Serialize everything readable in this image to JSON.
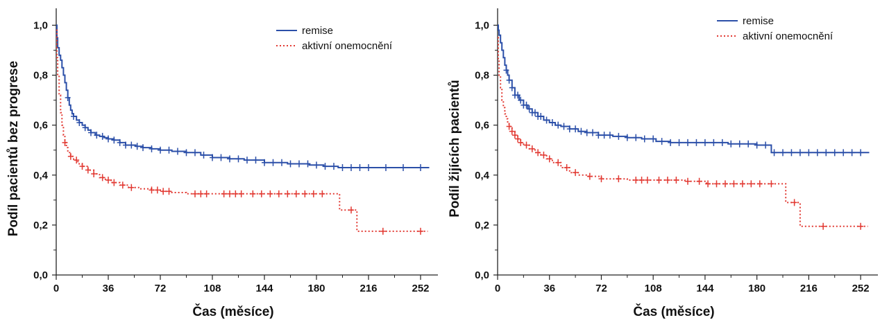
{
  "chart_data": [
    {
      "type": "line",
      "title": "",
      "xlabel": "Čas (měsíce)",
      "ylabel": "Podíl pacientů bez progrese",
      "xlim": [
        0,
        264
      ],
      "ylim": [
        0,
        1.04
      ],
      "x_ticks": [
        0,
        36,
        72,
        108,
        144,
        180,
        216,
        252
      ],
      "y_ticks": [
        "0,0",
        "0,2",
        "0,4",
        "0,6",
        "0,8",
        "1,0"
      ],
      "grid": false,
      "legend_position": "top-right",
      "series": [
        {
          "name": "remise",
          "color": "#2b4fa8",
          "style": "solid",
          "x": [
            0,
            0.5,
            1,
            2,
            3,
            4,
            5,
            6,
            7,
            8,
            9,
            10,
            11,
            12,
            14,
            16,
            18,
            20,
            22,
            24,
            27,
            30,
            33,
            36,
            40,
            44,
            48,
            55,
            60,
            66,
            72,
            80,
            90,
            100,
            108,
            120,
            130,
            144,
            160,
            175,
            185,
            195,
            210,
            230,
            245,
            252,
            258
          ],
          "y": [
            1.0,
            0.95,
            0.91,
            0.88,
            0.86,
            0.83,
            0.8,
            0.77,
            0.74,
            0.71,
            0.68,
            0.66,
            0.645,
            0.635,
            0.62,
            0.61,
            0.6,
            0.59,
            0.58,
            0.57,
            0.56,
            0.555,
            0.55,
            0.545,
            0.54,
            0.53,
            0.52,
            0.515,
            0.51,
            0.505,
            0.5,
            0.495,
            0.49,
            0.48,
            0.47,
            0.465,
            0.46,
            0.45,
            0.445,
            0.44,
            0.435,
            0.43,
            0.43,
            0.43,
            0.43,
            0.43,
            0.43
          ],
          "censored_x": [
            8,
            12,
            16,
            20,
            24,
            28,
            32,
            36,
            40,
            44,
            48,
            52,
            56,
            60,
            66,
            72,
            78,
            84,
            90,
            96,
            102,
            108,
            114,
            120,
            126,
            132,
            138,
            144,
            150,
            156,
            162,
            168,
            174,
            180,
            186,
            192,
            198,
            204,
            210,
            216,
            228,
            240,
            252
          ]
        },
        {
          "name": "aktivní onemocnění",
          "color": "#e23a33",
          "style": "dotted",
          "x": [
            0,
            0.5,
            1,
            2,
            3,
            4,
            5,
            6,
            7,
            8,
            10,
            12,
            15,
            18,
            22,
            26,
            30,
            34,
            38,
            44,
            50,
            58,
            66,
            72,
            80,
            90,
            100,
            120,
            150,
            180,
            196,
            208,
            222,
            240,
            257
          ],
          "y": [
            0.98,
            0.87,
            0.8,
            0.72,
            0.65,
            0.6,
            0.56,
            0.53,
            0.51,
            0.49,
            0.475,
            0.46,
            0.445,
            0.435,
            0.42,
            0.405,
            0.39,
            0.38,
            0.37,
            0.36,
            0.35,
            0.345,
            0.34,
            0.335,
            0.33,
            0.325,
            0.325,
            0.325,
            0.325,
            0.325,
            0.26,
            0.175,
            0.175,
            0.175,
            0.175
          ],
          "censored_x": [
            6,
            10,
            14,
            18,
            22,
            26,
            32,
            36,
            40,
            46,
            52,
            66,
            70,
            74,
            78,
            96,
            100,
            104,
            116,
            120,
            124,
            128,
            136,
            142,
            148,
            154,
            160,
            166,
            172,
            178,
            184,
            204,
            226,
            252
          ]
        }
      ]
    },
    {
      "type": "line",
      "title": "",
      "xlabel": "Čas (měsíce)",
      "ylabel": "Podíl žijících pacientů",
      "xlim": [
        0,
        264
      ],
      "ylim": [
        0,
        1.04
      ],
      "x_ticks": [
        0,
        36,
        72,
        108,
        144,
        180,
        216,
        252
      ],
      "y_ticks": [
        "0,0",
        "0,2",
        "0,4",
        "0,6",
        "0,8",
        "1,0"
      ],
      "grid": false,
      "legend_position": "top-right",
      "series": [
        {
          "name": "remise",
          "color": "#2b4fa8",
          "style": "solid",
          "x": [
            0,
            0.5,
            1,
            2,
            3,
            4,
            5,
            6,
            7,
            8,
            10,
            12,
            15,
            18,
            21,
            24,
            28,
            32,
            36,
            40,
            44,
            50,
            56,
            62,
            70,
            80,
            90,
            100,
            110,
            120,
            140,
            160,
            180,
            190,
            200,
            220,
            240,
            258
          ],
          "y": [
            1.0,
            0.98,
            0.96,
            0.93,
            0.9,
            0.87,
            0.84,
            0.82,
            0.8,
            0.78,
            0.75,
            0.72,
            0.7,
            0.68,
            0.665,
            0.65,
            0.635,
            0.62,
            0.61,
            0.6,
            0.595,
            0.585,
            0.575,
            0.57,
            0.56,
            0.555,
            0.55,
            0.545,
            0.535,
            0.53,
            0.53,
            0.525,
            0.52,
            0.49,
            0.49,
            0.49,
            0.49,
            0.49
          ],
          "censored_x": [
            6,
            8,
            10,
            12,
            14,
            16,
            18,
            20,
            22,
            24,
            26,
            28,
            30,
            34,
            38,
            42,
            46,
            50,
            54,
            58,
            62,
            66,
            70,
            74,
            78,
            84,
            90,
            96,
            102,
            108,
            114,
            120,
            126,
            132,
            138,
            144,
            150,
            156,
            162,
            168,
            174,
            180,
            186,
            192,
            198,
            204,
            210,
            216,
            222,
            228,
            234,
            240,
            246,
            252
          ]
        },
        {
          "name": "aktivní onemocnění",
          "color": "#e23a33",
          "style": "dotted",
          "x": [
            0,
            0.5,
            1,
            2,
            3,
            4,
            5,
            6,
            7,
            8,
            10,
            12,
            14,
            16,
            18,
            22,
            26,
            30,
            34,
            38,
            44,
            50,
            56,
            62,
            72,
            90,
            110,
            130,
            145,
            160,
            180,
            200,
            210,
            226,
            257
          ],
          "y": [
            0.95,
            0.86,
            0.8,
            0.75,
            0.7,
            0.67,
            0.645,
            0.625,
            0.61,
            0.595,
            0.575,
            0.56,
            0.545,
            0.53,
            0.52,
            0.505,
            0.49,
            0.48,
            0.465,
            0.45,
            0.43,
            0.41,
            0.4,
            0.395,
            0.385,
            0.38,
            0.38,
            0.375,
            0.365,
            0.365,
            0.365,
            0.29,
            0.195,
            0.195,
            0.195
          ],
          "censored_x": [
            8,
            10,
            12,
            14,
            16,
            20,
            24,
            28,
            32,
            36,
            42,
            48,
            54,
            64,
            72,
            84,
            96,
            100,
            104,
            112,
            118,
            124,
            132,
            140,
            146,
            152,
            158,
            164,
            170,
            176,
            182,
            190,
            206,
            226,
            252
          ]
        }
      ]
    }
  ]
}
